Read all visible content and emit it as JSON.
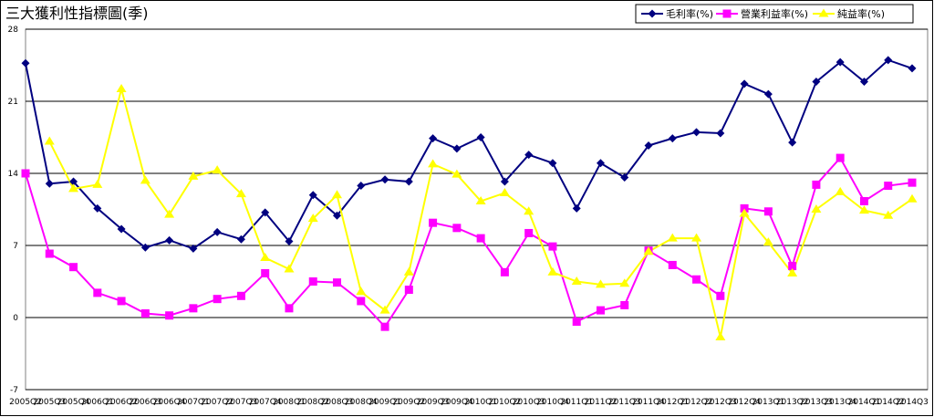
{
  "chart_data": {
    "type": "line",
    "title": "三大獲利性指標圖(季)",
    "categories": [
      "2005Q2",
      "2005Q3",
      "2005Q4",
      "2006Q1",
      "2006Q2",
      "2006Q3",
      "2006Q4",
      "2007Q1",
      "2007Q2",
      "2007Q3",
      "2007Q4",
      "2008Q1",
      "2008Q2",
      "2008Q3",
      "2008Q4",
      "2009Q1",
      "2009Q2",
      "2009Q3",
      "2009Q4",
      "2010Q1",
      "2010Q2",
      "2010Q3",
      "2010Q4",
      "2011Q1",
      "2011Q2",
      "2011Q3",
      "2011Q4",
      "2012Q1",
      "2012Q2",
      "2012Q3",
      "2012Q4",
      "2013Q1",
      "2013Q2",
      "2013Q3",
      "2013Q4",
      "2014Q1",
      "2014Q2",
      "2014Q3"
    ],
    "series": [
      {
        "name": "毛利率(%)",
        "color": "#000080",
        "marker": "diamond",
        "values": [
          24.7,
          13.0,
          13.2,
          10.6,
          8.6,
          6.8,
          7.5,
          6.7,
          8.3,
          7.6,
          10.2,
          7.4,
          11.9,
          9.9,
          12.8,
          13.4,
          13.2,
          17.4,
          16.4,
          17.5,
          13.2,
          15.8,
          15.0,
          10.6,
          15.0,
          13.6,
          16.7,
          17.4,
          18.0,
          17.9,
          22.7,
          21.7,
          17.0,
          22.9,
          24.8,
          22.9,
          25.0,
          24.2
        ]
      },
      {
        "name": "營業利益率(%)",
        "color": "#ff00ff",
        "marker": "square",
        "values": [
          14.0,
          6.2,
          4.9,
          2.4,
          1.6,
          0.4,
          0.2,
          0.9,
          1.8,
          2.1,
          4.3,
          0.9,
          3.5,
          3.4,
          1.6,
          -0.9,
          2.7,
          9.2,
          8.7,
          7.7,
          4.4,
          8.2,
          6.9,
          -0.4,
          0.7,
          1.2,
          6.5,
          5.1,
          3.7,
          2.1,
          10.6,
          10.3,
          5.0,
          12.9,
          15.5,
          11.3,
          12.8,
          13.1
        ]
      },
      {
        "name": "純益率(%)",
        "color": "#ffff00",
        "marker": "triangle",
        "values": [
          null,
          17.1,
          12.5,
          12.9,
          22.2,
          13.3,
          10.0,
          13.7,
          14.3,
          12.0,
          5.8,
          4.7,
          9.6,
          11.9,
          2.5,
          0.7,
          4.4,
          14.9,
          13.9,
          11.3,
          12.1,
          10.3,
          4.4,
          3.5,
          3.2,
          3.3,
          6.4,
          7.7,
          7.7,
          -1.9,
          10.1,
          7.3,
          4.3,
          10.5,
          12.2,
          10.4,
          9.9,
          11.5
        ]
      }
    ],
    "ylim": [
      -7,
      28
    ],
    "yticks": [
      -7,
      0,
      7,
      14,
      21,
      28
    ],
    "grid": true,
    "legend": "top-right"
  }
}
